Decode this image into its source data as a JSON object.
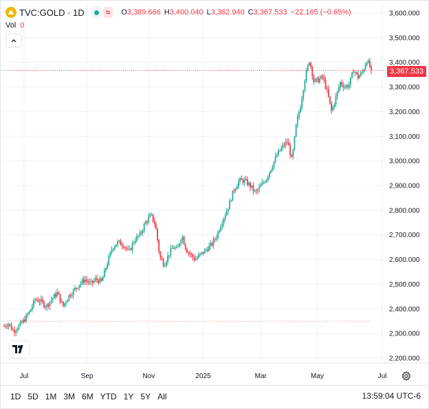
{
  "legend": {
    "symbol": "TVC:GOLD · 1D",
    "ohlc": [
      {
        "k": "O",
        "v": "3,389.666"
      },
      {
        "k": "H",
        "v": "3,400.040"
      },
      {
        "k": "L",
        "v": "3,362.940"
      },
      {
        "k": "C",
        "v": "3,367.533"
      }
    ],
    "change": "−22.165 (−0.65%)",
    "vol_label": "Vol",
    "vol_value": "0"
  },
  "last_price": "3,367.533",
  "toolbar": {
    "ranges": [
      "1D",
      "5D",
      "1M",
      "3M",
      "6M",
      "YTD",
      "1Y",
      "5Y",
      "All"
    ],
    "clock": "13:59:04 UTC-6"
  },
  "colors": {
    "up": "#22ab94",
    "down": "#f23645",
    "price_line": "#f23645",
    "grid": "#f0f3fa"
  },
  "chart_data": {
    "type": "candlestick",
    "title": "",
    "y_tick_labels": [
      "3,600.000",
      "3,500.000",
      "3,400.000",
      "3,300.000",
      "3,200.000",
      "3,100.000",
      "3,000.000",
      "2,900.000",
      "2,800.000",
      "2,700.000",
      "2,600.000",
      "2,500.000",
      "2,400.000",
      "2,300.000",
      "2,200.000"
    ],
    "y_ticks": [
      3600,
      3500,
      3400,
      3300,
      3200,
      3100,
      3000,
      2900,
      2800,
      2700,
      2600,
      2500,
      2400,
      2300,
      2200
    ],
    "ylim": [
      2200,
      3600
    ],
    "x_tick_labels": [
      "Jul",
      "Sep",
      "Nov",
      "2025",
      "Mar",
      "May",
      "Jul"
    ],
    "x_ticks": [
      0.054,
      0.226,
      0.394,
      0.542,
      0.699,
      0.853,
      1.0
    ],
    "last_price": 3367.533,
    "secondary_line": 2350,
    "path": [
      [
        0.0,
        2330
      ],
      [
        0.012,
        2340
      ],
      [
        0.025,
        2310
      ],
      [
        0.04,
        2330
      ],
      [
        0.055,
        2355
      ],
      [
        0.07,
        2390
      ],
      [
        0.085,
        2440
      ],
      [
        0.1,
        2430
      ],
      [
        0.115,
        2410
      ],
      [
        0.13,
        2440
      ],
      [
        0.145,
        2465
      ],
      [
        0.16,
        2410
      ],
      [
        0.175,
        2450
      ],
      [
        0.19,
        2475
      ],
      [
        0.205,
        2500
      ],
      [
        0.22,
        2520
      ],
      [
        0.235,
        2500
      ],
      [
        0.25,
        2520
      ],
      [
        0.265,
        2510
      ],
      [
        0.28,
        2580
      ],
      [
        0.295,
        2650
      ],
      [
        0.31,
        2670
      ],
      [
        0.325,
        2660
      ],
      [
        0.34,
        2630
      ],
      [
        0.355,
        2680
      ],
      [
        0.37,
        2700
      ],
      [
        0.385,
        2750
      ],
      [
        0.4,
        2780
      ],
      [
        0.412,
        2740
      ],
      [
        0.424,
        2610
      ],
      [
        0.436,
        2580
      ],
      [
        0.448,
        2620
      ],
      [
        0.46,
        2650
      ],
      [
        0.472,
        2640
      ],
      [
        0.484,
        2700
      ],
      [
        0.496,
        2640
      ],
      [
        0.508,
        2620
      ],
      [
        0.52,
        2600
      ],
      [
        0.535,
        2620
      ],
      [
        0.55,
        2640
      ],
      [
        0.565,
        2660
      ],
      [
        0.58,
        2700
      ],
      [
        0.595,
        2760
      ],
      [
        0.61,
        2810
      ],
      [
        0.625,
        2880
      ],
      [
        0.64,
        2920
      ],
      [
        0.655,
        2920
      ],
      [
        0.67,
        2900
      ],
      [
        0.685,
        2870
      ],
      [
        0.7,
        2900
      ],
      [
        0.715,
        2930
      ],
      [
        0.73,
        2980
      ],
      [
        0.745,
        3030
      ],
      [
        0.76,
        3060
      ],
      [
        0.772,
        3080
      ],
      [
        0.784,
        3000
      ],
      [
        0.796,
        3150
      ],
      [
        0.808,
        3230
      ],
      [
        0.82,
        3340
      ],
      [
        0.832,
        3410
      ],
      [
        0.844,
        3320
      ],
      [
        0.856,
        3330
      ],
      [
        0.868,
        3340
      ],
      [
        0.88,
        3280
      ],
      [
        0.892,
        3200
      ],
      [
        0.904,
        3260
      ],
      [
        0.916,
        3320
      ],
      [
        0.928,
        3300
      ],
      [
        0.94,
        3310
      ],
      [
        0.952,
        3370
      ],
      [
        0.964,
        3340
      ],
      [
        0.976,
        3360
      ],
      [
        0.988,
        3410
      ],
      [
        1.0,
        3368
      ]
    ]
  }
}
